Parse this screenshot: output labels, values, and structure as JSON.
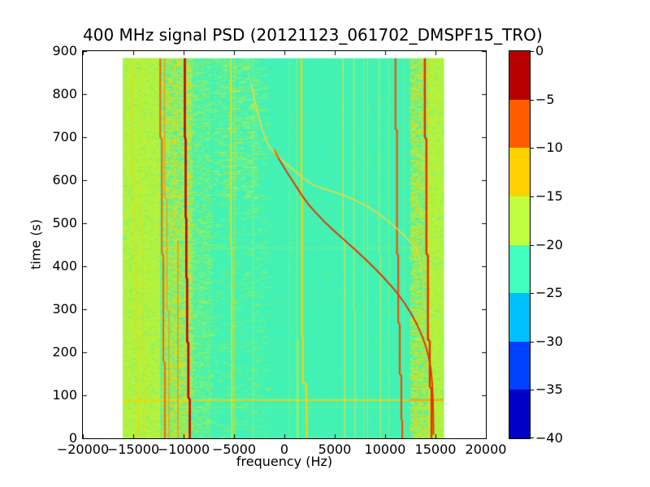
{
  "figure": {
    "background": "#ffffff",
    "text_color": "#000000"
  },
  "chart_data": {
    "type": "heatmap",
    "title": "400 MHz signal PSD (20121123_061702_DMSPF15_TRO)",
    "xlabel": "frequency (Hz)",
    "ylabel": "time (s)",
    "xlim": [
      -20000,
      20000
    ],
    "ylim": [
      0,
      900
    ],
    "grid": false,
    "legend": false,
    "x_axis": {
      "tick_values": [
        -20000,
        -15000,
        -10000,
        -5000,
        0,
        5000,
        10000,
        15000,
        20000
      ],
      "tick_labels": [
        "−20000",
        "−15000",
        "−10000",
        "−5000",
        "0",
        "5000",
        "10000",
        "15000",
        "20000"
      ]
    },
    "y_axis": {
      "tick_values": [
        0,
        100,
        200,
        300,
        400,
        500,
        600,
        700,
        800,
        900
      ],
      "tick_labels": [
        "0",
        "100",
        "200",
        "300",
        "400",
        "500",
        "600",
        "700",
        "800",
        "900"
      ]
    },
    "colorbar": {
      "tick_values": [
        0,
        -5,
        -10,
        -15,
        -20,
        -25,
        -30,
        -35,
        -40
      ],
      "tick_labels": [
        "0",
        "−5",
        "−10",
        "−15",
        "−20",
        "−25",
        "−30",
        "−35",
        "−40"
      ],
      "band_colors_top_to_bottom": [
        "#b80000",
        "#ff5c00",
        "#ffd100",
        "#bfff40",
        "#40ffbf",
        "#00bfff",
        "#0040ff",
        "#0000c7"
      ]
    },
    "data_extent": {
      "f": [
        -16050,
        15850
      ],
      "t": [
        0,
        884
      ]
    },
    "base_color": "#42f2b4",
    "noise_seed": 20121123,
    "bands": [
      {
        "f": [
          -16050,
          -12300
        ],
        "color": "#b4f23c"
      },
      {
        "f": [
          14250,
          15850
        ],
        "color": "#b4f23c"
      }
    ],
    "speckle_regions": [
      {
        "f": [
          -16050,
          -12300
        ],
        "density": 0.05,
        "dash": [
          1,
          4
        ],
        "colors": [
          "#42f2b4",
          "#8cee6e"
        ],
        "alpha": [
          0.3,
          0.8
        ]
      },
      {
        "f": [
          -12300,
          -9300
        ],
        "density": 0.45,
        "dash": [
          1,
          5
        ],
        "colors": [
          "#b4f23c",
          "#b4f23c",
          "#ffd100"
        ],
        "alpha": [
          0.4,
          1.0
        ]
      },
      {
        "f": [
          -9300,
          -7400
        ],
        "density": 0.16,
        "dash": [
          1,
          5
        ],
        "colors": [
          "#b4f23c",
          "#8cee6e"
        ],
        "alpha": [
          0.3,
          0.9
        ]
      },
      {
        "f": [
          -9300,
          -1800
        ],
        "density": 0.035,
        "dash": [
          2,
          9
        ],
        "colors": [
          "#8cee6e",
          "#b4f23c"
        ],
        "alpha": [
          0.25,
          0.7
        ]
      },
      {
        "f": [
          -7200,
          -2800
        ],
        "t": [
          560,
          884
        ],
        "density": 0.06,
        "dash": [
          2,
          10
        ],
        "colors": [
          "#8cee6e",
          "#d8ee3c"
        ],
        "alpha": [
          0.3,
          0.8
        ]
      },
      {
        "f": [
          -1800,
          12400
        ],
        "density": 0.012,
        "dash": [
          1,
          6
        ],
        "colors": [
          "#8cee6e"
        ],
        "alpha": [
          0.2,
          0.55
        ]
      },
      {
        "f": [
          12400,
          14250
        ],
        "density": 0.45,
        "dash": [
          1,
          5
        ],
        "colors": [
          "#b4f23c",
          "#b4f23c",
          "#ffd100"
        ],
        "alpha": [
          0.4,
          1.0
        ]
      },
      {
        "f": [
          14250,
          15850
        ],
        "density": 0.05,
        "dash": [
          1,
          4
        ],
        "colors": [
          "#42f2b4",
          "#8cee6e"
        ],
        "alpha": [
          0.3,
          0.8
        ]
      }
    ],
    "horizontal_lines": [
      {
        "t": 443,
        "f": [
          -16050,
          15850
        ],
        "color": "#d8ee3c",
        "width": 1,
        "alpha": 0.35
      },
      {
        "t": 73,
        "f": [
          -16050,
          15850
        ],
        "color": "#d8ee3c",
        "width": 1,
        "alpha": 0.3
      },
      {
        "t": 90,
        "f": [
          -16050,
          15850
        ],
        "color": "#ffd100",
        "width": 2,
        "alpha": 0.85
      },
      {
        "t": 90,
        "f": [
          12400,
          15850
        ],
        "color": "#ff8c00",
        "width": 2,
        "alpha": 0.7
      }
    ],
    "vertical_lines": [
      {
        "name": "carrier",
        "color": "#ffd100",
        "width": 1.4,
        "alpha": 0.85,
        "path": [
          [
            -15150,
            884
          ],
          [
            -15150,
            620
          ],
          [
            -14950,
            615
          ],
          [
            -14950,
            420
          ],
          [
            -14750,
            415
          ],
          [
            -14750,
            240
          ],
          [
            -14550,
            235
          ],
          [
            -14550,
            60
          ],
          [
            -14470,
            55
          ],
          [
            -14470,
            0
          ]
        ]
      },
      {
        "name": "carrier",
        "color": "#ffd100",
        "width": 1.0,
        "alpha": 0.4,
        "path": [
          [
            -14250,
            884
          ],
          [
            -14250,
            500
          ],
          [
            -14060,
            495
          ],
          [
            -14060,
            200
          ],
          [
            -13920,
            195
          ],
          [
            -13920,
            0
          ]
        ]
      },
      {
        "name": "carrier",
        "color": "#ff5c00",
        "width": 2.0,
        "alpha": 0.95,
        "path": [
          [
            -12330,
            884
          ],
          [
            -12330,
            700
          ],
          [
            -12160,
            695
          ],
          [
            -12160,
            430
          ],
          [
            -12010,
            425
          ],
          [
            -12010,
            180
          ],
          [
            -11860,
            175
          ],
          [
            -11860,
            0
          ]
        ]
      },
      {
        "name": "carrier",
        "color": "#ff8c00",
        "width": 1.3,
        "alpha": 0.8,
        "path": [
          [
            -11890,
            884
          ],
          [
            -11890,
            560
          ],
          [
            -11660,
            555
          ],
          [
            -11660,
            300
          ],
          [
            -11460,
            295
          ],
          [
            -11460,
            0
          ]
        ]
      },
      {
        "name": "carrier",
        "color": "#ff8c00",
        "width": 1.5,
        "alpha": 0.85,
        "path": [
          [
            -10560,
            460
          ],
          [
            -10560,
            0
          ]
        ]
      },
      {
        "name": "carrier",
        "color": "#ffd100",
        "width": 1.0,
        "alpha": 0.35,
        "path": [
          [
            -10950,
            884
          ],
          [
            -10950,
            0
          ]
        ]
      },
      {
        "name": "carrier-strong",
        "color": "#c80000",
        "width": 2.6,
        "alpha": 1.0,
        "path": [
          [
            -9880,
            884
          ],
          [
            -9880,
            700
          ],
          [
            -9800,
            695
          ],
          [
            -9800,
            515
          ],
          [
            -9730,
            510
          ],
          [
            -9730,
            375
          ],
          [
            -9650,
            370
          ],
          [
            -9650,
            225
          ],
          [
            -9530,
            220
          ],
          [
            -9530,
            95
          ],
          [
            -9390,
            90
          ],
          [
            -9390,
            0
          ]
        ]
      },
      {
        "name": "carrier",
        "color": "#ffdf00",
        "width": 1.5,
        "alpha": 0.9,
        "path": [
          [
            -5310,
            884
          ],
          [
            -5310,
            450
          ],
          [
            -5210,
            445
          ],
          [
            -5210,
            0
          ]
        ]
      },
      {
        "name": "carrier",
        "color": "#ffdf00",
        "width": 1.0,
        "alpha": 0.5,
        "path": [
          [
            -4950,
            884
          ],
          [
            -4950,
            0
          ]
        ]
      },
      {
        "name": "carrier",
        "color": "#c8ee50",
        "width": 1.0,
        "alpha": 0.45,
        "path": [
          [
            -3080,
            884
          ],
          [
            -3080,
            0
          ]
        ]
      },
      {
        "name": "carrier",
        "color": "#b4f23c",
        "width": 1.0,
        "alpha": 0.6,
        "path": [
          [
            520,
            884
          ],
          [
            520,
            0
          ]
        ]
      },
      {
        "name": "carrier",
        "color": "#c8ee3c",
        "width": 1.2,
        "alpha": 0.55,
        "path": [
          [
            1250,
            884
          ],
          [
            1250,
            0
          ]
        ]
      },
      {
        "name": "carrier-bright",
        "color": "#ffd100",
        "width": 2.2,
        "alpha": 1.0,
        "path": [
          [
            1690,
            884
          ],
          [
            1690,
            560
          ],
          [
            1760,
            555
          ],
          [
            1760,
            240
          ],
          [
            1840,
            235
          ],
          [
            1840,
            130
          ],
          [
            2150,
            125
          ],
          [
            2220,
            60
          ],
          [
            2220,
            0
          ]
        ]
      },
      {
        "name": "carrier",
        "color": "#c0ee3c",
        "width": 1.8,
        "alpha": 0.8,
        "path": [
          [
            1330,
            230
          ],
          [
            1330,
            0
          ]
        ]
      },
      {
        "name": "carrier",
        "color": "#e8e23c",
        "width": 1.4,
        "alpha": 0.8,
        "path": [
          [
            5820,
            884
          ],
          [
            5820,
            460
          ],
          [
            5980,
            455
          ],
          [
            5980,
            0
          ]
        ]
      },
      {
        "name": "carrier",
        "color": "#e8e23c",
        "width": 1.3,
        "alpha": 0.75,
        "path": [
          [
            6900,
            884
          ],
          [
            6900,
            300
          ],
          [
            7020,
            295
          ],
          [
            7020,
            0
          ]
        ]
      },
      {
        "name": "carrier",
        "color": "#d8ee3c",
        "width": 1.0,
        "alpha": 0.45,
        "path": [
          [
            7900,
            884
          ],
          [
            7900,
            0
          ]
        ]
      },
      {
        "name": "carrier",
        "color": "#e8e23c",
        "width": 1.0,
        "alpha": 0.55,
        "path": [
          [
            8250,
            884
          ],
          [
            8250,
            0
          ]
        ]
      },
      {
        "name": "carrier",
        "color": "#e8e23c",
        "width": 1.2,
        "alpha": 0.7,
        "path": [
          [
            9420,
            884
          ],
          [
            9420,
            430
          ],
          [
            9540,
            425
          ],
          [
            9540,
            0
          ]
        ]
      },
      {
        "name": "carrier",
        "color": "#d8ee3c",
        "width": 1.0,
        "alpha": 0.4,
        "path": [
          [
            10350,
            884
          ],
          [
            10350,
            0
          ]
        ]
      },
      {
        "name": "carrier",
        "color": "#d8ee3c",
        "width": 1.0,
        "alpha": 0.4,
        "path": [
          [
            11850,
            884
          ],
          [
            11850,
            0
          ]
        ]
      },
      {
        "name": "carrier-strong",
        "color": "#ff4800",
        "width": 2.2,
        "alpha": 1.0,
        "path": [
          [
            11030,
            884
          ],
          [
            11030,
            720
          ],
          [
            11180,
            715
          ],
          [
            11180,
            430
          ],
          [
            11300,
            425
          ],
          [
            11300,
            270
          ],
          [
            11450,
            265
          ],
          [
            11450,
            150
          ],
          [
            11610,
            145
          ],
          [
            11610,
            45
          ],
          [
            11700,
            40
          ],
          [
            11700,
            0
          ]
        ]
      },
      {
        "name": "carrier-strong",
        "color": "#e63000",
        "width": 2.4,
        "alpha": 1.0,
        "path": [
          [
            13940,
            884
          ],
          [
            13940,
            700
          ],
          [
            14100,
            695
          ],
          [
            14100,
            430
          ],
          [
            14250,
            425
          ],
          [
            14250,
            230
          ],
          [
            14430,
            225
          ],
          [
            14430,
            120
          ],
          [
            14600,
            115
          ],
          [
            14600,
            0
          ]
        ]
      }
    ],
    "traces": [
      {
        "name": "doppler-upper-stem",
        "color": "#f2d73c",
        "width": 1.4,
        "alpha": 0.4,
        "points": [
          [
            -3700,
            862
          ],
          [
            -3300,
            824
          ]
        ]
      },
      {
        "name": "doppler-secondary",
        "color": "#f2d73c",
        "width": 1.7,
        "alpha": 0.95,
        "points": [
          [
            -3300,
            824
          ],
          [
            -2950,
            786
          ],
          [
            -2600,
            752
          ],
          [
            -2250,
            722
          ],
          [
            -1900,
            698
          ],
          [
            -1500,
            678
          ],
          [
            -1100,
            666
          ],
          [
            -700,
            656
          ],
          [
            -200,
            646
          ],
          [
            400,
            634
          ],
          [
            1100,
            620
          ],
          [
            1900,
            604
          ],
          [
            2800,
            590
          ],
          [
            3800,
            581
          ],
          [
            4900,
            573
          ],
          [
            6000,
            564
          ],
          [
            7100,
            553
          ],
          [
            8200,
            540
          ],
          [
            9300,
            523
          ],
          [
            10300,
            505
          ],
          [
            11200,
            487
          ],
          [
            12000,
            469
          ],
          [
            12700,
            452
          ],
          [
            13150,
            438
          ],
          [
            13400,
            420
          ]
        ]
      },
      {
        "name": "doppler-secondary-tail",
        "color": "#f2d73c",
        "width": 1.5,
        "alpha": 0.5,
        "points": [
          [
            13400,
            420
          ],
          [
            13600,
            392
          ],
          [
            13750,
            360
          ],
          [
            13850,
            326
          ],
          [
            13920,
            290
          ]
        ]
      },
      {
        "name": "doppler-main",
        "color": "#e63200",
        "width": 1.9,
        "alpha": 1.0,
        "points": [
          [
            -850,
            662
          ],
          [
            -450,
            646
          ],
          [
            -50,
            630
          ],
          [
            350,
            615
          ],
          [
            850,
            597
          ],
          [
            1350,
            579
          ],
          [
            1850,
            561
          ],
          [
            2450,
            542
          ],
          [
            3150,
            524
          ],
          [
            3950,
            504
          ],
          [
            4850,
            484
          ],
          [
            5850,
            463
          ],
          [
            6950,
            440
          ],
          [
            8050,
            416
          ],
          [
            9150,
            391
          ],
          [
            10150,
            366
          ],
          [
            11050,
            342
          ],
          [
            11850,
            317
          ],
          [
            12550,
            291
          ],
          [
            13150,
            265
          ],
          [
            13650,
            239
          ],
          [
            14050,
            213
          ],
          [
            14350,
            187
          ],
          [
            14550,
            159
          ],
          [
            14670,
            129
          ],
          [
            14740,
            94
          ],
          [
            14780,
            54
          ],
          [
            14800,
            10
          ]
        ]
      },
      {
        "name": "doppler-split-knot",
        "color": "#ff7800",
        "width": 2.6,
        "alpha": 0.9,
        "points": [
          [
            -950,
            670
          ],
          [
            -650,
            654
          ]
        ]
      }
    ]
  }
}
